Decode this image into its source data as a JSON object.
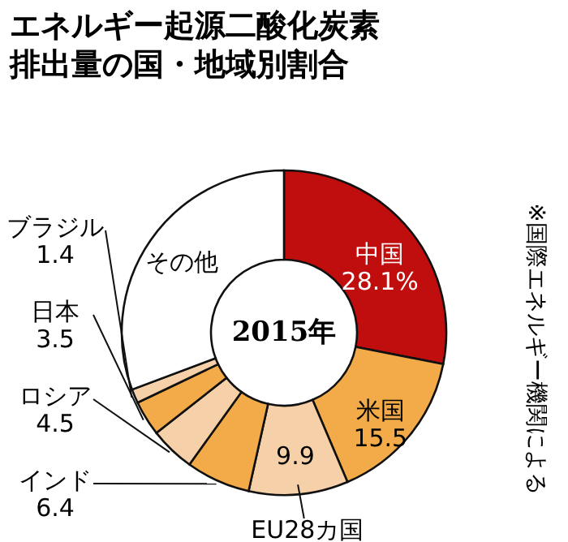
{
  "chart_data": {
    "type": "donut",
    "title": "エネルギー起源二酸化炭素排出量の国・地域別割合",
    "categories": [
      "中国",
      "米国",
      "EU28カ国",
      "インド",
      "ロシア",
      "日本",
      "ブラジル",
      "その他"
    ],
    "values": [
      28.1,
      15.5,
      9.9,
      6.4,
      4.5,
      3.5,
      1.4,
      30.7
    ],
    "value_labels": [
      "28.1%",
      "15.5",
      "9.9",
      "6.4",
      "4.5",
      "3.5",
      "1.4",
      null
    ],
    "colors": [
      "#c00d0d",
      "#f2ab48",
      "#f6d0a8",
      "#f2ab48",
      "#f6d0a8",
      "#f2ab48",
      "#f6d0a8",
      "#ffffff"
    ],
    "annotations": [
      "2015年",
      "※国際エネルギー機関による"
    ]
  }
}
